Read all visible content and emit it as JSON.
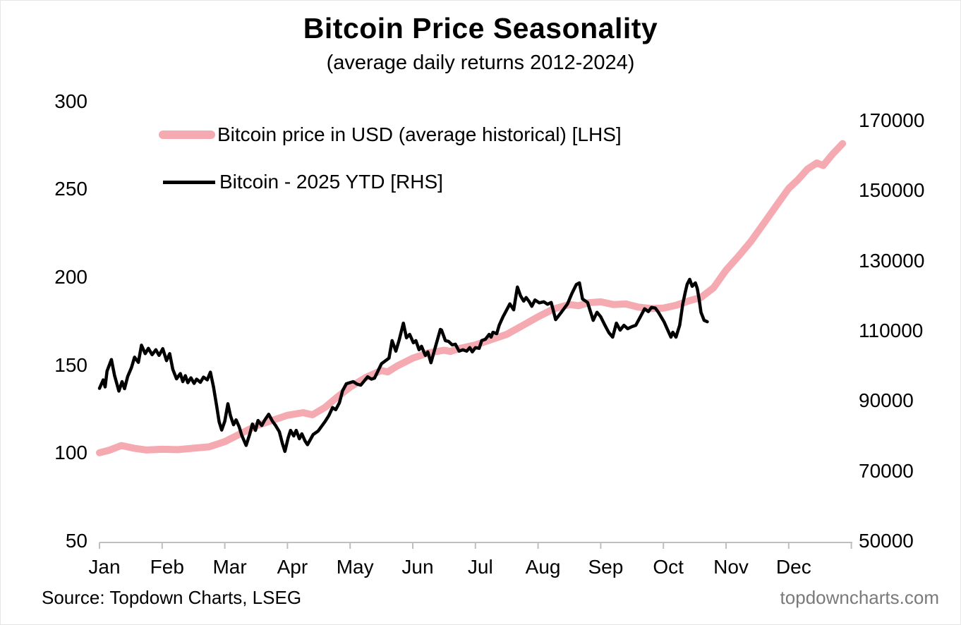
{
  "header": {
    "title": "Bitcoin Price Seasonality",
    "subtitle": "(average daily returns 2012-2024)"
  },
  "legend": {
    "items": [
      {
        "label": "Bitcoin price in USD (average historical) [LHS]",
        "color": "#F5A9B1",
        "style": "thick"
      },
      {
        "label": "Bitcoin - 2025 YTD [RHS]",
        "color": "#000000",
        "style": "thin"
      }
    ]
  },
  "footer": {
    "source": "Source: Topdown Charts, LSEG",
    "watermark": "topdowncharts.com",
    "watermark_color": "#7a7a7a"
  },
  "chart_data": {
    "type": "line",
    "title": "Bitcoin Price Seasonality",
    "subtitle": "(average daily returns 2012-2024)",
    "x_unit": "months since Jan 1 (0 = Jan 1, 12 = Dec 31)",
    "x_categories": [
      "Jan",
      "Feb",
      "Mar",
      "Apr",
      "May",
      "Jun",
      "Jul",
      "Aug",
      "Sep",
      "Oct",
      "Nov",
      "Dec"
    ],
    "grid": false,
    "legend_position": "top-left-inside",
    "axis_color": "#BFBFBF",
    "axes": {
      "left": {
        "side": "left",
        "min": 50,
        "max": 300,
        "ticks": [
          300,
          250,
          200,
          150,
          100,
          50
        ]
      },
      "right": {
        "side": "right",
        "min": 50000,
        "max": 170000,
        "ticks": [
          170000,
          150000,
          130000,
          110000,
          90000,
          70000,
          50000
        ]
      }
    },
    "series": [
      {
        "name": "Bitcoin price in USD (average historical) [LHS]",
        "axis": "left",
        "color": "#F5A9B1",
        "points": [
          [
            0.0,
            100.2
          ],
          [
            0.15,
            101.6
          ],
          [
            0.35,
            104.3
          ],
          [
            0.55,
            102.8
          ],
          [
            0.75,
            101.8
          ],
          [
            1.0,
            102.2
          ],
          [
            1.25,
            102.0
          ],
          [
            1.5,
            102.8
          ],
          [
            1.75,
            103.6
          ],
          [
            2.0,
            106.5
          ],
          [
            2.25,
            111.0
          ],
          [
            2.5,
            115.5
          ],
          [
            2.75,
            118.5
          ],
          [
            3.0,
            121.5
          ],
          [
            3.25,
            123.0
          ],
          [
            3.4,
            121.8
          ],
          [
            3.6,
            126.0
          ],
          [
            3.8,
            132.0
          ],
          [
            4.0,
            137.5
          ],
          [
            4.25,
            143.0
          ],
          [
            4.5,
            147.0
          ],
          [
            4.6,
            146.2
          ],
          [
            4.75,
            149.5
          ],
          [
            5.0,
            154.0
          ],
          [
            5.25,
            157.0
          ],
          [
            5.5,
            158.5
          ],
          [
            5.6,
            157.8
          ],
          [
            5.75,
            159.5
          ],
          [
            6.0,
            161.5
          ],
          [
            6.25,
            164.5
          ],
          [
            6.5,
            167.5
          ],
          [
            6.75,
            172.5
          ],
          [
            7.0,
            177.5
          ],
          [
            7.25,
            182.0
          ],
          [
            7.5,
            184.5
          ],
          [
            7.65,
            183.8
          ],
          [
            7.8,
            185.5
          ],
          [
            8.0,
            186.0
          ],
          [
            8.2,
            184.5
          ],
          [
            8.4,
            184.8
          ],
          [
            8.6,
            183.0
          ],
          [
            8.8,
            182.2
          ],
          [
            9.0,
            182.5
          ],
          [
            9.2,
            184.0
          ],
          [
            9.4,
            186.5
          ],
          [
            9.6,
            188.5
          ],
          [
            9.8,
            194.0
          ],
          [
            10.0,
            204.0
          ],
          [
            10.2,
            212.0
          ],
          [
            10.4,
            220.5
          ],
          [
            10.6,
            230.5
          ],
          [
            10.8,
            240.5
          ],
          [
            11.0,
            250.5
          ],
          [
            11.15,
            255.5
          ],
          [
            11.3,
            261.5
          ],
          [
            11.45,
            265.0
          ],
          [
            11.55,
            263.5
          ],
          [
            11.7,
            270.0
          ],
          [
            11.86,
            276.0
          ]
        ]
      },
      {
        "name": "Bitcoin - 2025 YTD [RHS]",
        "axis": "right",
        "color": "#000000",
        "points": [
          [
            0.0,
            93600
          ],
          [
            0.06,
            96000
          ],
          [
            0.09,
            94000
          ],
          [
            0.12,
            98500
          ],
          [
            0.19,
            101800
          ],
          [
            0.24,
            97300
          ],
          [
            0.31,
            92800
          ],
          [
            0.36,
            95500
          ],
          [
            0.4,
            93500
          ],
          [
            0.45,
            97000
          ],
          [
            0.51,
            99500
          ],
          [
            0.56,
            102500
          ],
          [
            0.62,
            101000
          ],
          [
            0.67,
            105900
          ],
          [
            0.73,
            103500
          ],
          [
            0.78,
            105000
          ],
          [
            0.84,
            103200
          ],
          [
            0.9,
            104600
          ],
          [
            0.95,
            103000
          ],
          [
            1.01,
            104900
          ],
          [
            1.07,
            101500
          ],
          [
            1.12,
            103500
          ],
          [
            1.17,
            99000
          ],
          [
            1.23,
            96300
          ],
          [
            1.29,
            97800
          ],
          [
            1.33,
            95500
          ],
          [
            1.37,
            97200
          ],
          [
            1.41,
            95200
          ],
          [
            1.46,
            96600
          ],
          [
            1.51,
            95000
          ],
          [
            1.55,
            96200
          ],
          [
            1.61,
            95300
          ],
          [
            1.66,
            96800
          ],
          [
            1.72,
            96000
          ],
          [
            1.77,
            98200
          ],
          [
            1.82,
            94000
          ],
          [
            1.87,
            88500
          ],
          [
            1.91,
            84000
          ],
          [
            1.95,
            81700
          ],
          [
            2.0,
            84200
          ],
          [
            2.05,
            89200
          ],
          [
            2.09,
            85800
          ],
          [
            2.14,
            83200
          ],
          [
            2.18,
            84600
          ],
          [
            2.23,
            82600
          ],
          [
            2.27,
            80200
          ],
          [
            2.34,
            77300
          ],
          [
            2.4,
            80600
          ],
          [
            2.44,
            83400
          ],
          [
            2.49,
            81600
          ],
          [
            2.53,
            84400
          ],
          [
            2.59,
            83000
          ],
          [
            2.64,
            84600
          ],
          [
            2.7,
            86200
          ],
          [
            2.76,
            84200
          ],
          [
            2.81,
            83000
          ],
          [
            2.87,
            81200
          ],
          [
            2.92,
            77800
          ],
          [
            2.96,
            75600
          ],
          [
            3.01,
            79400
          ],
          [
            3.05,
            81600
          ],
          [
            3.1,
            80000
          ],
          [
            3.14,
            81600
          ],
          [
            3.19,
            79200
          ],
          [
            3.23,
            80600
          ],
          [
            3.28,
            78600
          ],
          [
            3.32,
            77500
          ],
          [
            3.41,
            80400
          ],
          [
            3.49,
            81400
          ],
          [
            3.6,
            84100
          ],
          [
            3.66,
            85800
          ],
          [
            3.72,
            88100
          ],
          [
            3.77,
            87500
          ],
          [
            3.83,
            89500
          ],
          [
            3.88,
            92900
          ],
          [
            3.94,
            94900
          ],
          [
            4.05,
            95500
          ],
          [
            4.11,
            94800
          ],
          [
            4.17,
            94500
          ],
          [
            4.28,
            96900
          ],
          [
            4.34,
            96200
          ],
          [
            4.39,
            96500
          ],
          [
            4.5,
            100600
          ],
          [
            4.62,
            102200
          ],
          [
            4.67,
            107200
          ],
          [
            4.73,
            104200
          ],
          [
            4.78,
            107200
          ],
          [
            4.85,
            112200
          ],
          [
            4.9,
            108000
          ],
          [
            4.95,
            109000
          ],
          [
            5.01,
            106600
          ],
          [
            5.05,
            107200
          ],
          [
            5.1,
            104600
          ],
          [
            5.14,
            105600
          ],
          [
            5.2,
            103000
          ],
          [
            5.24,
            104000
          ],
          [
            5.29,
            100900
          ],
          [
            5.37,
            106000
          ],
          [
            5.44,
            110400
          ],
          [
            5.46,
            110200
          ],
          [
            5.52,
            107200
          ],
          [
            5.57,
            107000
          ],
          [
            5.63,
            106000
          ],
          [
            5.68,
            106200
          ],
          [
            5.74,
            104200
          ],
          [
            5.8,
            104600
          ],
          [
            5.86,
            104200
          ],
          [
            5.91,
            105200
          ],
          [
            5.95,
            104000
          ],
          [
            6.0,
            105200
          ],
          [
            6.06,
            105000
          ],
          [
            6.1,
            107200
          ],
          [
            6.16,
            107600
          ],
          [
            6.22,
            109000
          ],
          [
            6.25,
            108200
          ],
          [
            6.28,
            109600
          ],
          [
            6.34,
            109200
          ],
          [
            6.38,
            111600
          ],
          [
            6.44,
            114000
          ],
          [
            6.5,
            116000
          ],
          [
            6.55,
            117700
          ],
          [
            6.61,
            116000
          ],
          [
            6.67,
            122500
          ],
          [
            6.72,
            120000
          ],
          [
            6.77,
            118500
          ],
          [
            6.81,
            119500
          ],
          [
            6.86,
            118300
          ],
          [
            6.9,
            117000
          ],
          [
            6.95,
            118800
          ],
          [
            7.02,
            118000
          ],
          [
            7.09,
            118300
          ],
          [
            7.15,
            117600
          ],
          [
            7.21,
            118100
          ],
          [
            7.28,
            113200
          ],
          [
            7.37,
            115300
          ],
          [
            7.47,
            117700
          ],
          [
            7.54,
            120700
          ],
          [
            7.61,
            123200
          ],
          [
            7.66,
            123700
          ],
          [
            7.71,
            119100
          ],
          [
            7.79,
            118100
          ],
          [
            7.88,
            113000
          ],
          [
            7.94,
            115300
          ],
          [
            8.0,
            114000
          ],
          [
            8.07,
            111500
          ],
          [
            8.13,
            109500
          ],
          [
            8.19,
            108200
          ],
          [
            8.25,
            112200
          ],
          [
            8.31,
            110200
          ],
          [
            8.37,
            111600
          ],
          [
            8.43,
            110600
          ],
          [
            8.5,
            111200
          ],
          [
            8.56,
            111600
          ],
          [
            8.65,
            114600
          ],
          [
            8.7,
            116300
          ],
          [
            8.76,
            115500
          ],
          [
            8.81,
            116700
          ],
          [
            8.87,
            116500
          ],
          [
            8.92,
            115300
          ],
          [
            9.01,
            112600
          ],
          [
            9.06,
            110600
          ],
          [
            9.12,
            108200
          ],
          [
            9.15,
            109600
          ],
          [
            9.2,
            108200
          ],
          [
            9.26,
            111600
          ],
          [
            9.31,
            117700
          ],
          [
            9.35,
            121100
          ],
          [
            9.38,
            123300
          ],
          [
            9.42,
            124700
          ],
          [
            9.46,
            122700
          ],
          [
            9.51,
            123700
          ],
          [
            9.54,
            122100
          ],
          [
            9.57,
            119100
          ],
          [
            9.6,
            115300
          ],
          [
            9.65,
            113000
          ],
          [
            9.7,
            112600
          ]
        ]
      }
    ]
  }
}
